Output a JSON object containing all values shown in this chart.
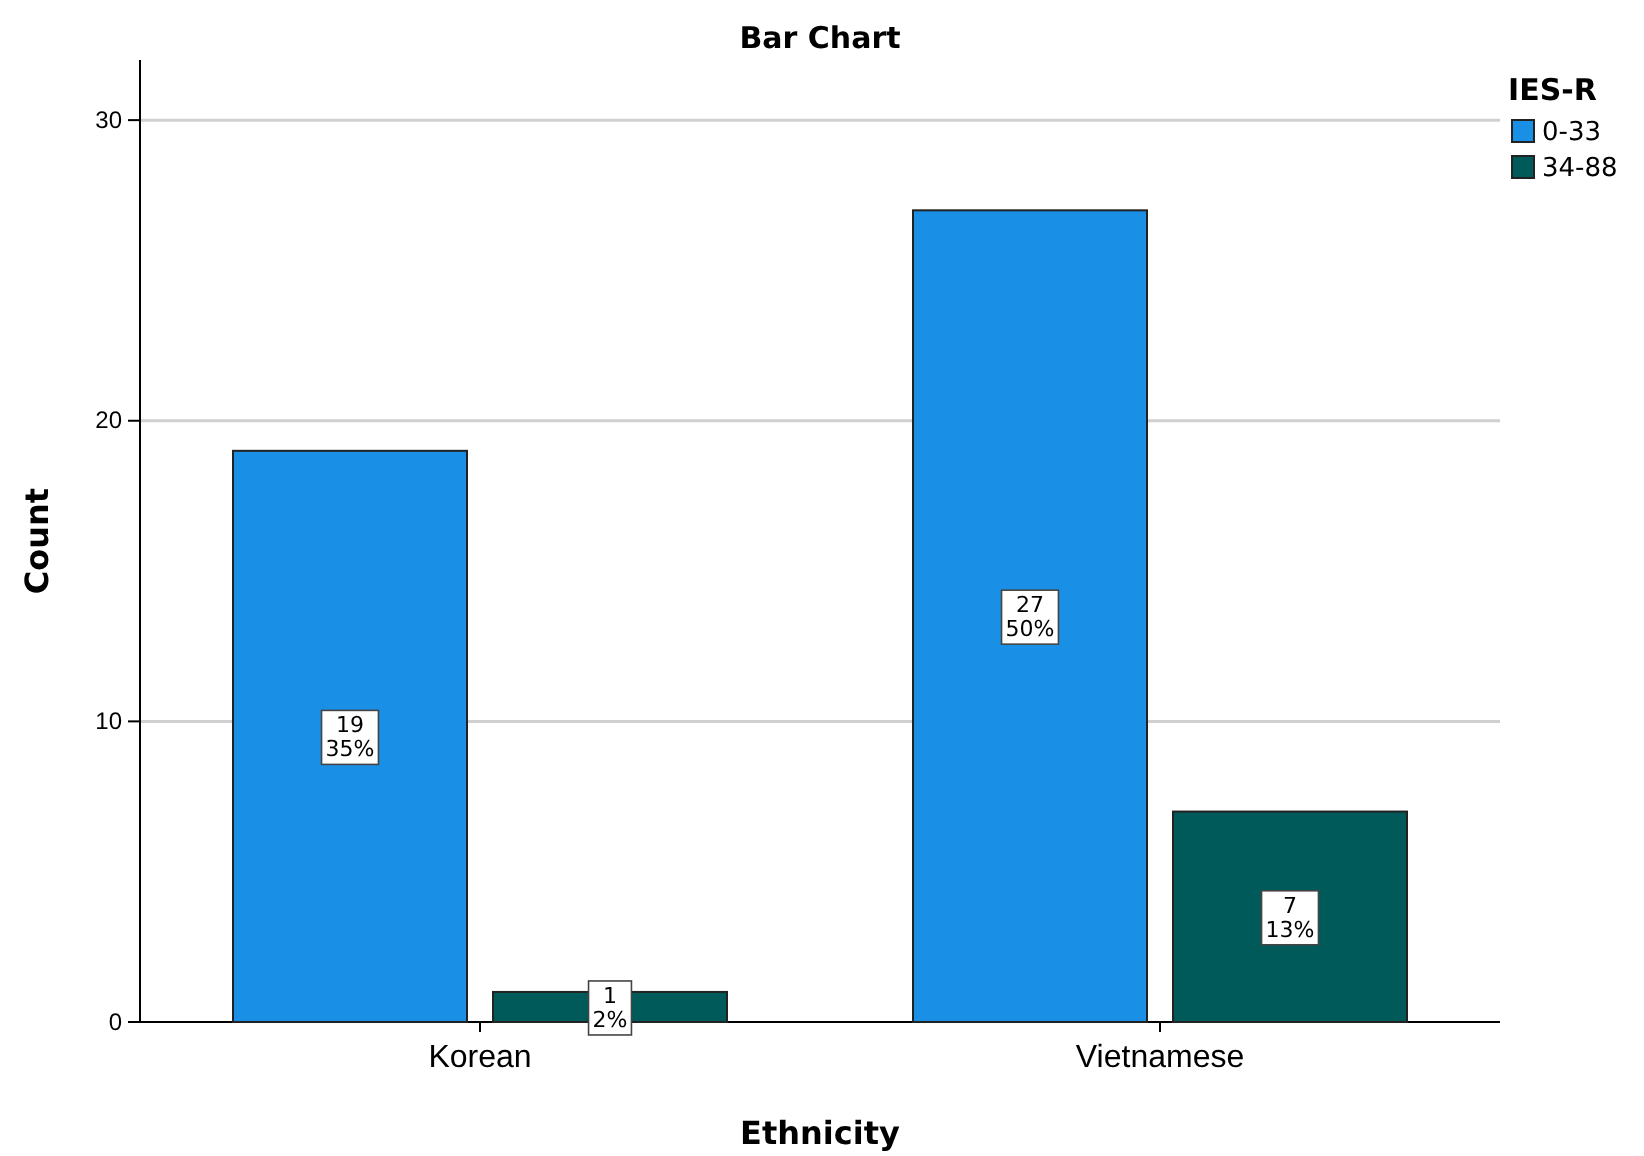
{
  "chart_data": {
    "type": "bar",
    "title": "Bar Chart",
    "xlabel": "Ethnicity",
    "ylabel": "Count",
    "legend_title": "IES-R",
    "categories": [
      "Korean",
      "Vietnamese"
    ],
    "series": [
      {
        "name": "0-33",
        "color": "#1a8fe6",
        "values": [
          19,
          27
        ],
        "value_labels": [
          "19\n35%",
          "27\n50%"
        ]
      },
      {
        "name": "34-88",
        "color": "#005a5a",
        "values": [
          1,
          7
        ],
        "value_labels": [
          "1\n2%",
          "7\n13%"
        ]
      }
    ],
    "ylim": [
      0,
      32
    ],
    "yticks": [
      0,
      10,
      20,
      30
    ],
    "grid": "y",
    "legend": "top right"
  }
}
